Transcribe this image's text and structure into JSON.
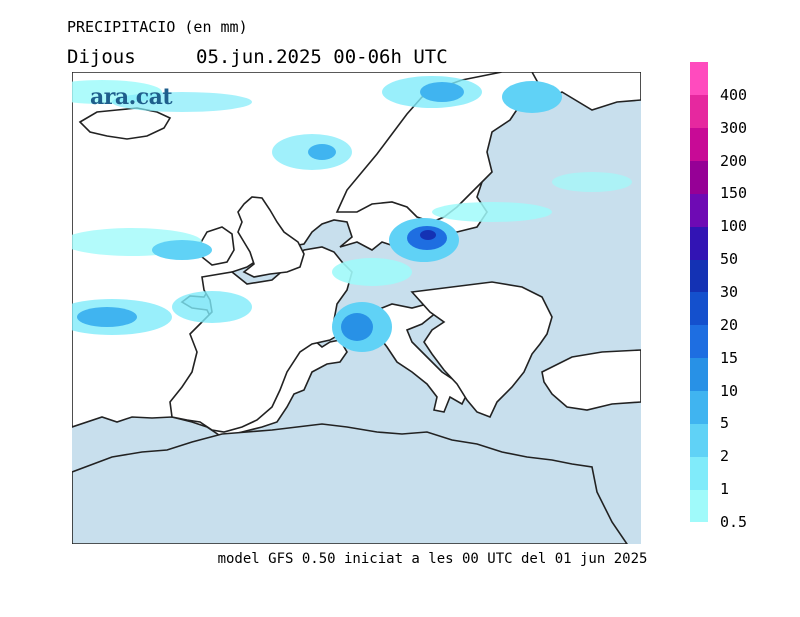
{
  "header": {
    "variable": "PRECIPITACIO (en mm)",
    "day": "Dijous",
    "period": "05.jun.2025 00-06h UTC"
  },
  "logo": {
    "text": "ara.cat"
  },
  "footer": {
    "model_note": "model GFS 0.50 iniciat a les 00 UTC del 01 jun 2025"
  },
  "legend": {
    "thresholds": [
      "0.5",
      "1",
      "2",
      "5",
      "10",
      "15",
      "20",
      "30",
      "50",
      "100",
      "150",
      "200",
      "300",
      "400"
    ],
    "colors": [
      "#a0fafa",
      "#80ebfa",
      "#60d2f6",
      "#40b4f0",
      "#2891e6",
      "#1e6ee1",
      "#1450cd",
      "#1432b4",
      "#3214b4",
      "#6e0ab4",
      "#960096",
      "#c80a96",
      "#e6289f",
      "#ff4bbe"
    ]
  }
}
